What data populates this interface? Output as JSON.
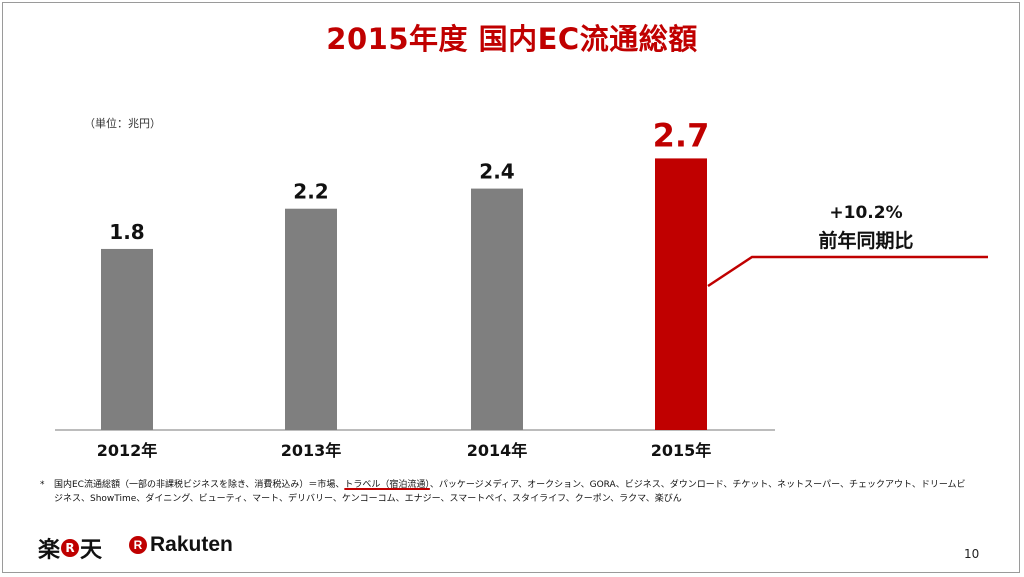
{
  "title": "2015年度 国内EC流通総額",
  "unit_label": "（単位：兆円）",
  "chart_data": {
    "type": "bar",
    "categories": [
      "2012年",
      "2013年",
      "2014年",
      "2015年"
    ],
    "values": [
      1.8,
      2.2,
      2.4,
      2.7
    ],
    "value_labels": [
      "1.8",
      "2.2",
      "2.4",
      "2.7"
    ],
    "highlight_index": 3,
    "colors": {
      "default": "#7f7f7f",
      "highlight": "#c00000"
    },
    "ylim": [
      0,
      3.4
    ],
    "grid": false,
    "annotation": {
      "line1": "+10.2%",
      "line2": "前年同期比"
    }
  },
  "footnote": {
    "marker": "*",
    "before_highlight": "国内EC流通総額（一部の非課税ビジネスを除き、消費税込み）＝市場、",
    "highlight": "トラベル（宿泊流通）",
    "after_highlight": "、パッケージメディア、オークション、GORA、ビジネス、ダウンロード、チケット、ネットスーパー、チェックアウト、ドリームビジネス、ShowTime、ダイニング、ビューティ、マート、デリバリー、ケンコーコム、エナジー、スマートペイ、スタイライフ、クーポン、ラクマ、楽びん"
  },
  "branding": {
    "jp_left": "楽",
    "jp_mark": "R",
    "jp_right": "天",
    "en_mark": "R",
    "en_name": "Rakuten",
    "brand_color": "#bf0000"
  },
  "page_number": "10"
}
